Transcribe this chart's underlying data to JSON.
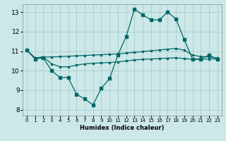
{
  "xlabel": "Humidex (Indice chaleur)",
  "background_color": "#cce8e8",
  "grid_color": "#aacccc",
  "line_color": "#006666",
  "xlim": [
    -0.5,
    23.5
  ],
  "ylim": [
    7.7,
    13.4
  ],
  "xticks": [
    0,
    1,
    2,
    3,
    4,
    5,
    6,
    7,
    8,
    9,
    10,
    11,
    12,
    13,
    14,
    15,
    16,
    17,
    18,
    19,
    20,
    21,
    22,
    23
  ],
  "yticks": [
    8,
    9,
    10,
    11,
    12,
    13
  ],
  "series1_x": [
    0,
    1,
    2,
    3,
    4,
    5,
    6,
    7,
    8,
    9,
    10,
    11,
    12,
    13,
    14,
    15,
    16,
    17,
    18,
    19,
    20,
    21,
    22,
    23
  ],
  "series1_y": [
    11.05,
    10.6,
    10.65,
    10.0,
    9.65,
    9.65,
    8.8,
    8.55,
    8.25,
    9.1,
    9.6,
    10.8,
    11.75,
    13.15,
    12.85,
    12.6,
    12.6,
    13.0,
    12.65,
    11.6,
    10.6,
    10.6,
    10.8,
    10.6
  ],
  "series2_x": [
    0,
    1,
    2,
    3,
    4,
    5,
    6,
    7,
    8,
    9,
    10,
    11,
    12,
    13,
    14,
    15,
    16,
    17,
    18,
    19,
    20,
    21,
    22,
    23
  ],
  "series2_y": [
    11.05,
    10.65,
    10.7,
    10.7,
    10.72,
    10.74,
    10.76,
    10.78,
    10.8,
    10.82,
    10.84,
    10.86,
    10.9,
    10.94,
    10.98,
    11.02,
    11.06,
    11.1,
    11.14,
    11.05,
    10.8,
    10.72,
    10.7,
    10.65
  ],
  "series3_x": [
    0,
    1,
    2,
    3,
    4,
    5,
    6,
    7,
    8,
    9,
    10,
    11,
    12,
    13,
    14,
    15,
    16,
    17,
    18,
    19,
    20,
    21,
    22,
    23
  ],
  "series3_y": [
    11.05,
    10.65,
    10.7,
    10.35,
    10.2,
    10.2,
    10.28,
    10.35,
    10.38,
    10.4,
    10.42,
    10.45,
    10.5,
    10.55,
    10.58,
    10.6,
    10.62,
    10.64,
    10.66,
    10.62,
    10.58,
    10.58,
    10.6,
    10.6
  ]
}
